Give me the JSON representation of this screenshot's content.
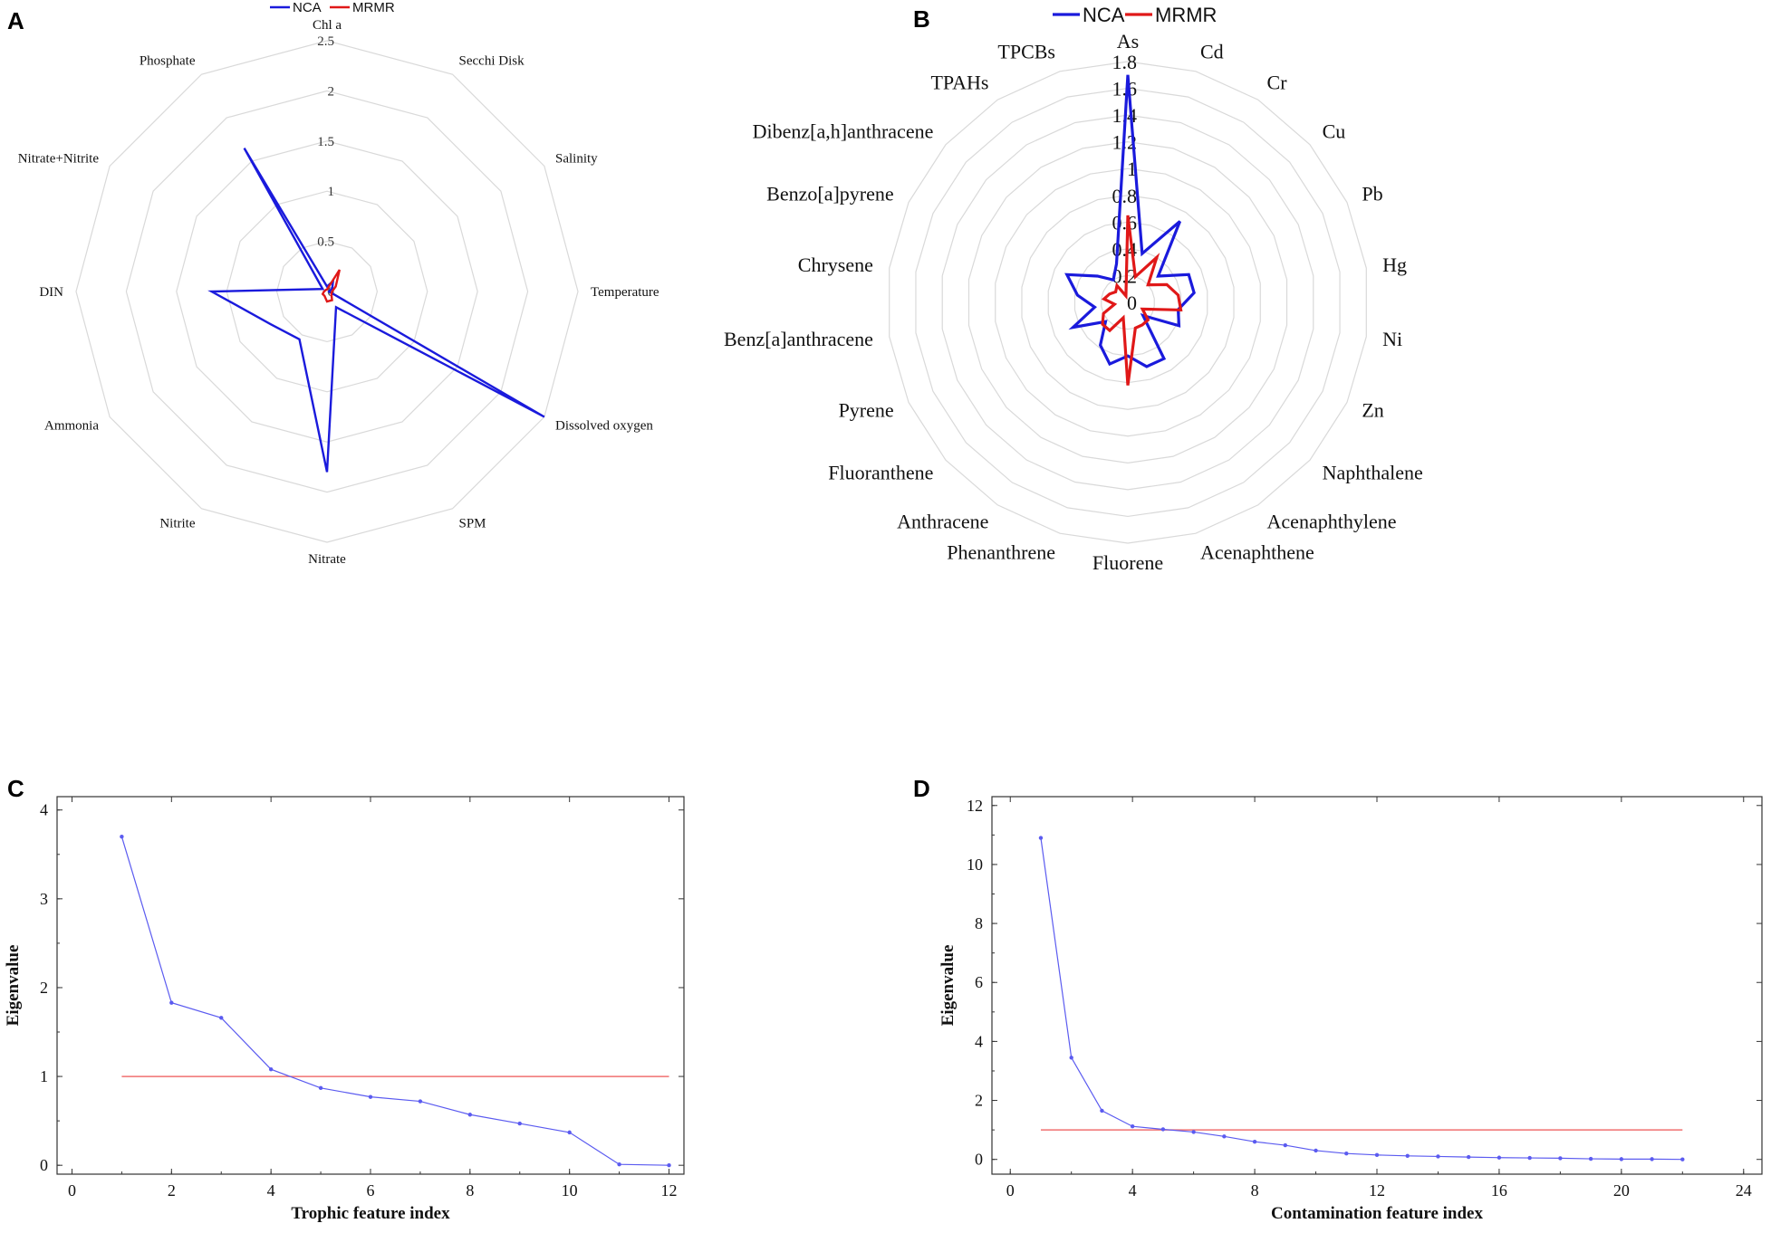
{
  "chart_data": [
    {
      "panel": "A",
      "type": "radar",
      "legend": [
        "NCA",
        "MRMR"
      ],
      "colors": {
        "NCA": "#1a1adc",
        "MRMR": "#e01818",
        "grid": "#d9d9d9"
      },
      "categories": [
        "Chl a",
        "Secchi Disk",
        "Salinity",
        "Temperature",
        "Dissolved oxygen",
        "SPM",
        "Nitrate",
        "Nitrite",
        "Ammonia",
        "DIN",
        "Nitrate+Nitrite",
        "Phosphate"
      ],
      "radial_ticks": [
        "0",
        "0.5",
        "1",
        "1.5",
        "2",
        "2.5"
      ],
      "rmax": 2.5,
      "series": [
        {
          "name": "NCA",
          "values": [
            0.05,
            0.12,
            0.06,
            0.02,
            2.5,
            0.18,
            1.8,
            0.55,
            0.65,
            1.15,
            0.05,
            1.65
          ]
        },
        {
          "name": "MRMR",
          "values": [
            0.02,
            0.25,
            0.1,
            0.05,
            0.05,
            0.1,
            0.1,
            0.05,
            0.05,
            0.03,
            0.02,
            0.02
          ]
        }
      ]
    },
    {
      "panel": "B",
      "type": "radar",
      "legend": [
        "NCA",
        "MRMR"
      ],
      "colors": {
        "NCA": "#1a1adc",
        "MRMR": "#e01818",
        "grid": "#d9d9d9"
      },
      "categories": [
        "As",
        "Cd",
        "Cr",
        "Cu",
        "Pb",
        "Hg",
        "Ni",
        "Zn",
        "Naphthalene",
        "Acenaphthylene",
        "Acenaphthene",
        "Fluorene",
        "Phenanthrene",
        "Anthracene",
        "Fluoranthene",
        "Pyrene",
        "Benz[a]anthracene",
        "Chrysene",
        "Benzo[a]pyrene",
        "Dibenz[a,h]anthracene",
        "TPAHs",
        "TPCBs"
      ],
      "radial_ticks": [
        "0",
        "0.2",
        "0.4",
        "0.6",
        "0.8",
        "1",
        "1.2",
        "1.4",
        "1.6",
        "1.8"
      ],
      "rmax": 1.8,
      "series": [
        {
          "name": "NCA",
          "values": [
            1.7,
            0.38,
            0.72,
            0.3,
            0.5,
            0.5,
            0.38,
            0.42,
            0.15,
            0.5,
            0.5,
            0.4,
            0.48,
            0.38,
            0.22,
            0.45,
            0.25,
            0.38,
            0.5,
            0.3,
            0.2,
            0.3
          ]
        },
        {
          "name": "MRMR",
          "values": [
            0.65,
            0.2,
            0.4,
            0.2,
            0.32,
            0.38,
            0.4,
            0.12,
            0.2,
            0.2,
            0.2,
            0.62,
            0.12,
            0.25,
            0.25,
            0.2,
            0.1,
            0.18,
            0.15,
            0.12,
            0.15,
            0.05
          ]
        }
      ]
    },
    {
      "panel": "C",
      "type": "line",
      "xlabel": "Trophic feature index",
      "ylabel": "Eigenvalue",
      "xlim": [
        -0.3,
        12.3
      ],
      "ylim": [
        -0.1,
        4.15
      ],
      "xticks": [
        0,
        2,
        4,
        6,
        8,
        10,
        12
      ],
      "yticks": [
        0,
        1,
        2,
        3,
        4
      ],
      "threshold": 1,
      "colors": {
        "line": "#5b5bf0",
        "threshold": "#f07070"
      },
      "x": [
        1,
        2,
        3,
        4,
        5,
        6,
        7,
        8,
        9,
        10,
        11,
        12
      ],
      "values": [
        3.7,
        1.83,
        1.66,
        1.08,
        0.87,
        0.77,
        0.72,
        0.57,
        0.47,
        0.37,
        0.01,
        0.0
      ]
    },
    {
      "panel": "D",
      "type": "line",
      "xlabel": "Contamination feature index",
      "ylabel": "Eigenvalue",
      "xlim": [
        -0.6,
        24.6
      ],
      "ylim": [
        -0.5,
        12.3
      ],
      "xticks": [
        0,
        4,
        8,
        12,
        16,
        20,
        24
      ],
      "yticks": [
        0,
        2,
        4,
        6,
        8,
        10,
        12
      ],
      "threshold": 1,
      "colors": {
        "line": "#5b5bf0",
        "threshold": "#f07070"
      },
      "x": [
        1,
        2,
        3,
        4,
        5,
        6,
        7,
        8,
        9,
        10,
        11,
        12,
        13,
        14,
        15,
        16,
        17,
        18,
        19,
        20,
        21,
        22
      ],
      "values": [
        10.9,
        3.45,
        1.65,
        1.12,
        1.02,
        0.93,
        0.78,
        0.6,
        0.48,
        0.3,
        0.2,
        0.15,
        0.12,
        0.1,
        0.08,
        0.06,
        0.05,
        0.04,
        0.02,
        0.01,
        0.01,
        0.0
      ]
    }
  ]
}
